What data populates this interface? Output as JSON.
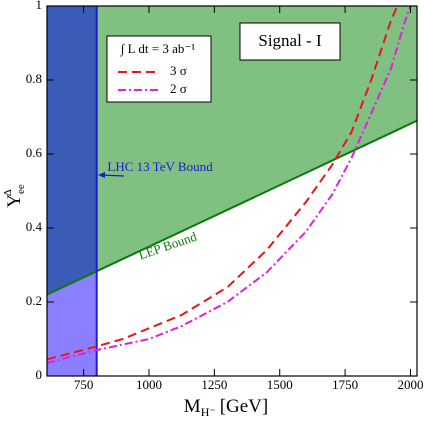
{
  "chart_data": {
    "type": "line",
    "title": "Signal - I",
    "legend_title": "∫ L dt = 3 ab⁻¹",
    "xlabel": {
      "main": "M",
      "sub": "H⁻",
      "unit": "[GeV]"
    },
    "ylabel": {
      "main": "Y",
      "sub": "ee",
      "sup": "Δ"
    },
    "xlim": [
      610,
      2025
    ],
    "ylim": [
      0,
      1
    ],
    "xticks": [
      750,
      1000,
      1250,
      1500,
      1750,
      2000
    ],
    "yticks": [
      0,
      0.2,
      0.4,
      0.6,
      0.8,
      1
    ],
    "lhc_bound": {
      "label": "LHC 13 TeV Bound",
      "x": 800,
      "color": "#1a1ad6",
      "fill_left_above": "#3a5cb8",
      "fill_left_below": "#8a80ff"
    },
    "lep_bound": {
      "label": "LEP Bound",
      "x": [
        610,
        2025
      ],
      "y": [
        0.22,
        0.69
      ],
      "color": "#0a7a0a",
      "fill_above": "#80c080"
    },
    "series": [
      {
        "name": "3 σ",
        "color": "#e8141e",
        "dash": "9,5",
        "x": [
          610,
          800,
          900,
          1125,
          1300,
          1450,
          1600,
          1700,
          1775,
          1850,
          1925,
          1950
        ],
        "values": [
          0.045,
          0.08,
          0.1,
          0.165,
          0.24,
          0.34,
          0.47,
          0.57,
          0.66,
          0.8,
          0.96,
          1.0
        ]
      },
      {
        "name": "2 σ",
        "color": "#e020e0",
        "dash": "8,3,2,3",
        "x": [
          610,
          800,
          1000,
          1125,
          1300,
          1450,
          1600,
          1700,
          1775,
          1850,
          1925,
          1975,
          2000
        ],
        "values": [
          0.035,
          0.07,
          0.1,
          0.135,
          0.2,
          0.28,
          0.39,
          0.49,
          0.59,
          0.71,
          0.83,
          0.95,
          1.0
        ]
      }
    ]
  }
}
